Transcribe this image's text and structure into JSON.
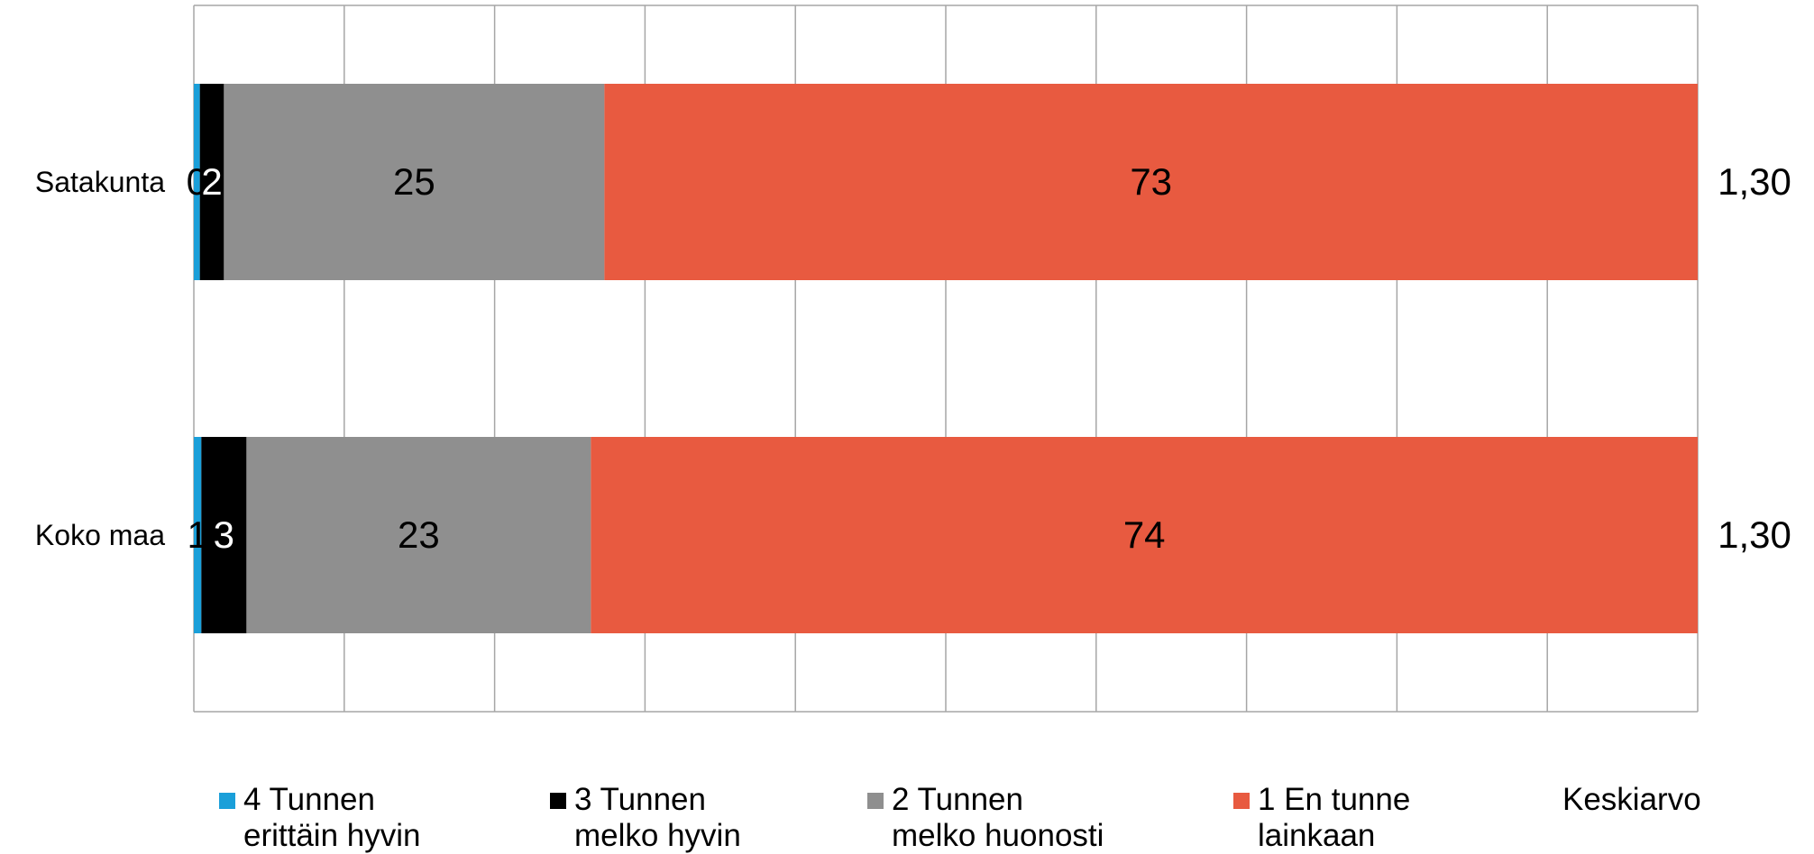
{
  "chart_data": {
    "type": "bar",
    "orientation": "horizontal",
    "stacked": true,
    "categories": [
      "Satakunta",
      "Koko maa"
    ],
    "series": [
      {
        "name": "4 Tunnen erittäin hyvin",
        "values": [
          0.4,
          0.5
        ],
        "labels": [
          "0",
          "1"
        ],
        "color": "#1a9fd9"
      },
      {
        "name": "3 Tunnen melko hyvin",
        "values": [
          1.6,
          3.0
        ],
        "labels": [
          "2",
          "3"
        ],
        "color": "#000000"
      },
      {
        "name": "2 Tunnen melko huonosti",
        "values": [
          25.3,
          22.9
        ],
        "labels": [
          "25",
          "23"
        ],
        "color": "#8f8f8f"
      },
      {
        "name": "1 En tunne lainkaan",
        "values": [
          72.7,
          73.6
        ],
        "labels": [
          "73",
          "74"
        ],
        "color": "#e85a40"
      }
    ],
    "extra_column": {
      "name": "Keskiarvo",
      "values": [
        "1,30",
        "1,30"
      ]
    },
    "xlim": [
      0,
      100
    ],
    "vertical_gridlines": 10,
    "grid": true,
    "legend_position": "bottom"
  }
}
